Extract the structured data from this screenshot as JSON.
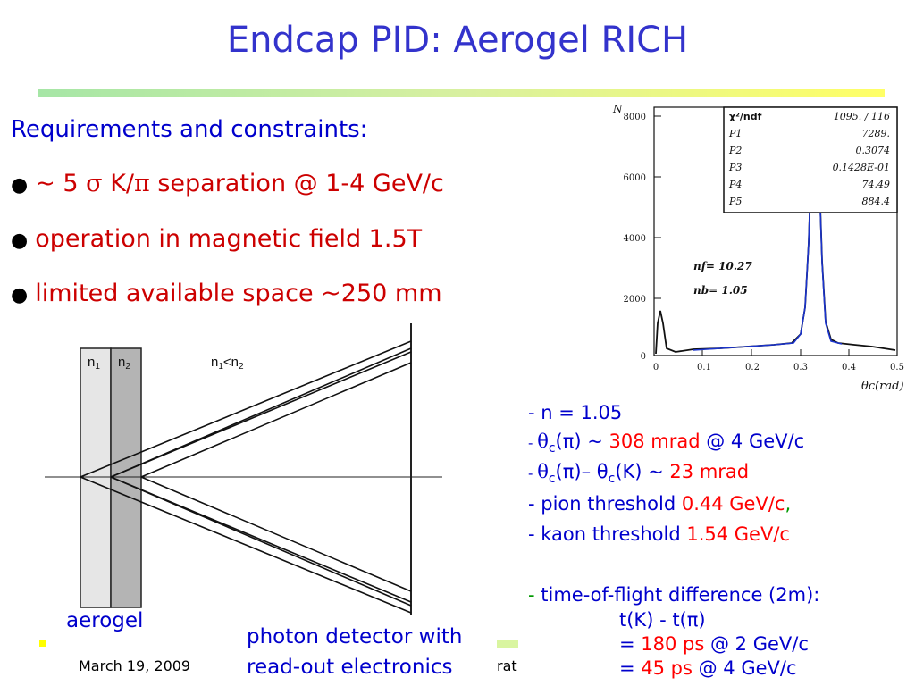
{
  "title": "Endcap PID: Aerogel RICH",
  "requirements": {
    "heading": "Requirements and constraints:",
    "bullet_symbol": "●",
    "items": [
      {
        "prefix": "~ 5 ",
        "sym1": "σ",
        "mid": " K/",
        "sym2": "π",
        "suffix": " separation @ 1-4 GeV/c"
      },
      {
        "text": "operation in magnetic field 1.5T"
      },
      {
        "text": "limited available space ~250 mm"
      }
    ]
  },
  "diagram": {
    "n1": "n1",
    "n2": "n2",
    "relation": "n1<n2",
    "caption_aerogel": "aerogel",
    "caption_detector_1": "photon detector with",
    "caption_detector_2": "read-out electronics"
  },
  "histogram": {
    "y_axis_label": "N",
    "x_axis_label": "θc(rad)",
    "y_ticks": [
      "8000",
      "6000",
      "4000",
      "2000",
      "0"
    ],
    "x_ticks": [
      "0",
      "0.1",
      "0.2",
      "0.3",
      "0.4",
      "0.5"
    ],
    "stats": [
      {
        "name": "χ²/ndf",
        "value": "1095.   /  116"
      },
      {
        "name": "P1",
        "value": "7289."
      },
      {
        "name": "P2",
        "value": "0.3074"
      },
      {
        "name": "P3",
        "value": "0.1428E-01"
      },
      {
        "name": "P4",
        "value": "74.49"
      },
      {
        "name": "P5",
        "value": "884.4"
      }
    ],
    "nf": "nf= 10.27",
    "nb": "nb= 1.05"
  },
  "params": {
    "n": "- n = 1.05",
    "l2_dash": "- ",
    "l2_theta": "θ",
    "l2_sub": "c",
    "l2_mid": "(π) ~ ",
    "l2_val": "308 mrad",
    "l2_tail": " @ 4 GeV/c",
    "l3_dash": "- ",
    "l3_a": "θ",
    "l3_sub1": "c",
    "l3_b": "(π)– θ",
    "l3_sub2": "c",
    "l3_c": "(K) ~ ",
    "l3_val": "23 mrad",
    "l4_label": "-     pion threshold ",
    "l4_val": "0.44 GeV/c",
    "l4_comma": ",",
    "l5_label": "-     kaon threshold ",
    "l5_val": "1.54 GeV/c",
    "tof_dash": "- ",
    "tof_text": "time-of-flight difference (2m):",
    "tof_expr": "t(K) - t(π)",
    "tof_eq1": "= ",
    "tof_v1": "180 ps",
    "tof_t1": " @ 2 GeV/c",
    "tof_eq2": "= ",
    "tof_v2": "45 ps",
    "tof_t2": " @ 4 GeV/c"
  },
  "footer": {
    "date": "March 19, 2009",
    "partial": "rat"
  }
}
